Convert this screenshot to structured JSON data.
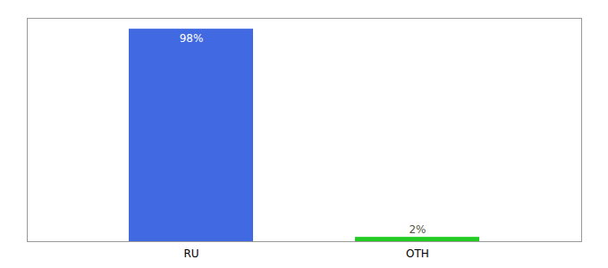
{
  "chart_data": {
    "type": "bar",
    "categories": [
      "RU",
      "OTH"
    ],
    "values": [
      98,
      2
    ],
    "colors": [
      "#4169e1",
      "#22cc22"
    ],
    "ylim": [
      0,
      103
    ],
    "data_labels": true,
    "value_labels": [
      "98%",
      "2%"
    ],
    "tick_labels": "x"
  }
}
